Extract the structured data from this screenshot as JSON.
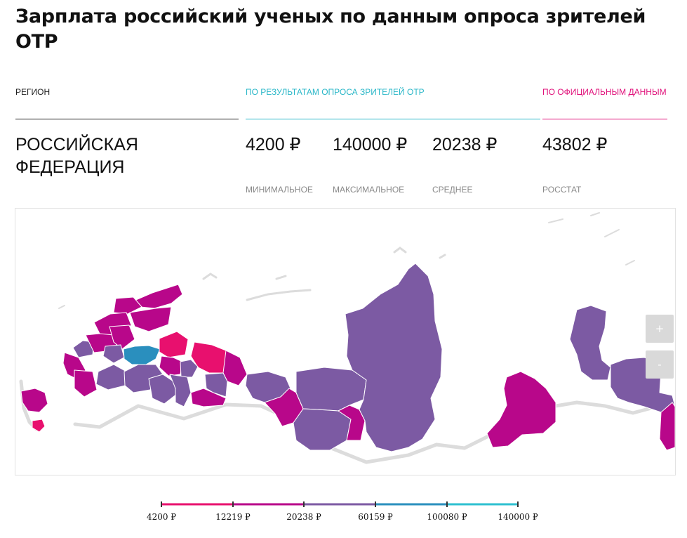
{
  "title": "Зарплата российский ученых по данным опроса зрителей ОТР",
  "headers": {
    "region": "РЕГИОН",
    "survey": "ПО РЕЗУЛЬТАТАМ ОПРОСА ЗРИТЕЛЕЙ ОТР",
    "official": "ПО ОФИЦИАЛЬНЫМ ДАННЫМ"
  },
  "region_name": "РОССИЙСКАЯ ФЕДЕРАЦИЯ",
  "values": {
    "min": "4200 ₽",
    "max": "140000 ₽",
    "avg": "20238 ₽",
    "rosstat": "43802 ₽"
  },
  "captions": {
    "min": "МИНИМАЛЬНОЕ",
    "max": "МАКСИМАЛЬНОЕ",
    "avg": "СРЕДНЕЕ",
    "rosstat": "РОССТАТ"
  },
  "map": {
    "zoom_in_label": "+",
    "zoom_out_label": "-",
    "colors": {
      "c1": "#e8106e",
      "c2": "#b8078a",
      "c3": "#7c5aa3",
      "c4": "#2a8fbe",
      "c5": "#2ec0d0",
      "border": "#ffffff",
      "shadow": "#dcdcdc"
    }
  },
  "legend": {
    "labels": [
      "4200 ₽",
      "12219 ₽",
      "20238 ₽",
      "60159 ₽",
      "100080 ₽",
      "140000 ₽"
    ],
    "colors": [
      "#e8106e",
      "#b8078a",
      "#7c5aa3",
      "#2a8fbe",
      "#2ec0d0"
    ]
  }
}
